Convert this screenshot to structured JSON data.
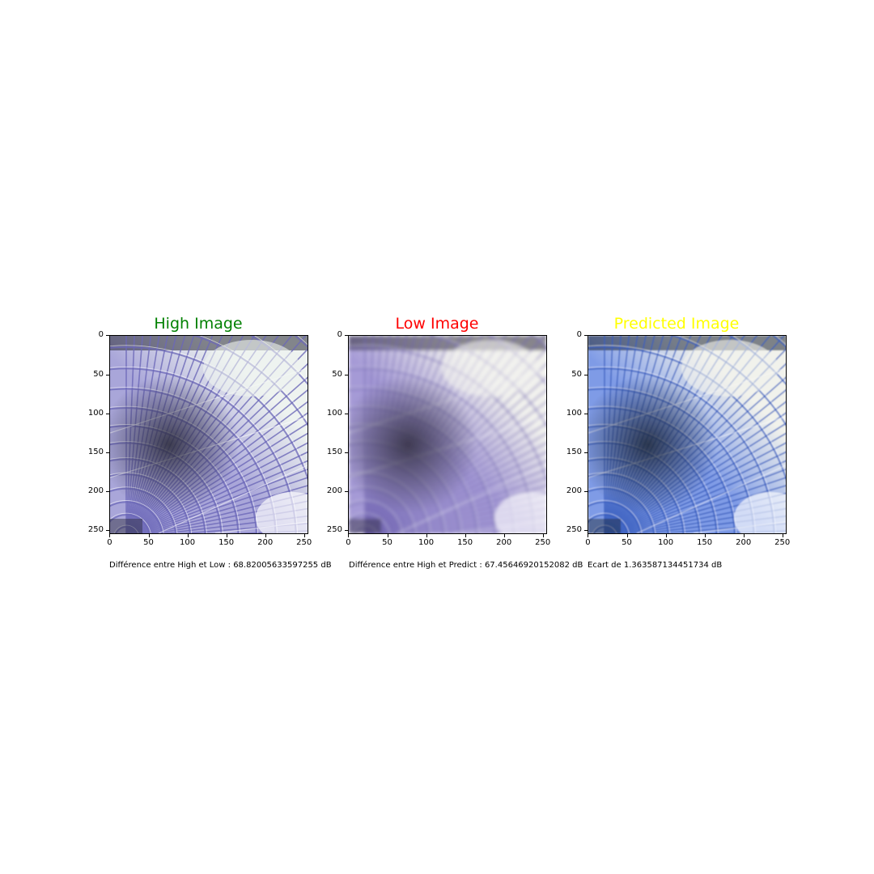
{
  "panels": [
    {
      "title": "High Image",
      "title_color": "#008000",
      "style": "sharp",
      "caption": "Différence entre High et Low : 68.82005633597255 dB"
    },
    {
      "title": "Low Image",
      "title_color": "#ff0000",
      "style": "blurred",
      "caption": "Différence entre High et Predict : 67.45646920152082 dB"
    },
    {
      "title": "Predicted Image",
      "title_color": "#ffff00",
      "style": "predicted",
      "caption": "Ecart de 1.363587134451734 dB"
    }
  ],
  "axes": {
    "y_ticks": [
      "0",
      "50",
      "100",
      "150",
      "200",
      "250"
    ],
    "x_ticks": [
      "0",
      "50",
      "100",
      "150",
      "200",
      "250"
    ],
    "range": [
      0,
      255
    ]
  }
}
